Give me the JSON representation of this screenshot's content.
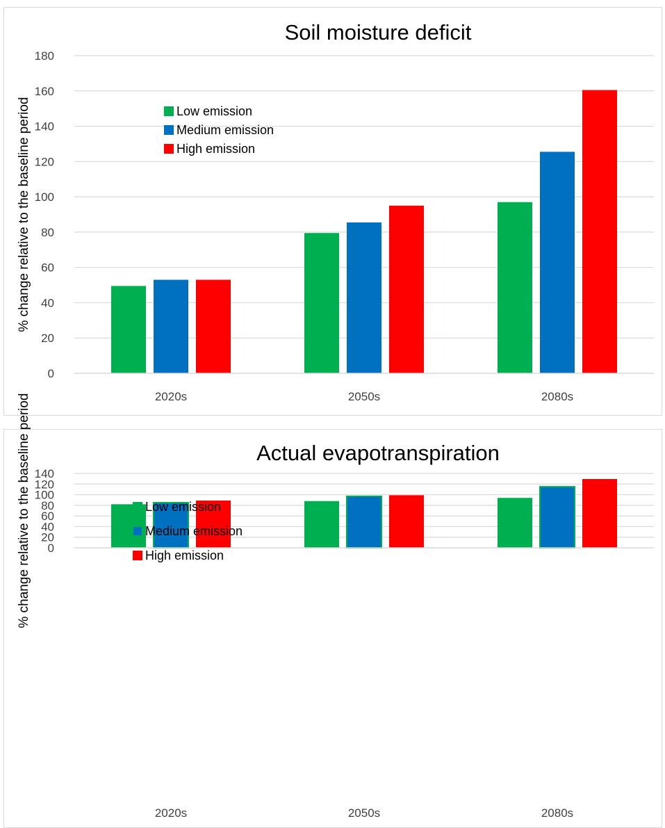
{
  "chart_data": [
    {
      "type": "bar",
      "title": "Soil moisture deficit",
      "ylabel": "% change relative to the baseline period",
      "xlabel": "",
      "categories": [
        "2020s",
        "2050s",
        "2080s"
      ],
      "ylim": [
        0,
        180
      ],
      "yticks": [
        0,
        20,
        40,
        60,
        80,
        100,
        120,
        140,
        160,
        180
      ],
      "grid": true,
      "legend": "top-left",
      "series": [
        {
          "name": "Low emission",
          "color": "#00b050",
          "values": [
            49.5,
            79.5,
            97
          ]
        },
        {
          "name": "Medium emission",
          "color": "#0070c0",
          "values": [
            53,
            85.5,
            125.5
          ]
        },
        {
          "name": "High emission",
          "color": "#ff0000",
          "values": [
            53,
            95,
            160.5
          ]
        }
      ]
    },
    {
      "type": "bar",
      "title": "Actual evapotranspiration",
      "ylabel": "% change relative to the baseline period",
      "xlabel": "",
      "categories": [
        "2020s",
        "2050s",
        "2080s"
      ],
      "ylim": [
        0,
        140
      ],
      "yticks": [
        0,
        20,
        40,
        60,
        80,
        100,
        120,
        140
      ],
      "grid": true,
      "legend": "top-left",
      "series": [
        {
          "name": "Low emission",
          "color": "#00b050",
          "values": [
            82,
            88,
            94
          ]
        },
        {
          "name": "Medium emission",
          "color": "#0070c0",
          "values": [
            85,
            97,
            115
          ]
        },
        {
          "name": "High emission",
          "color": "#ff0000",
          "values": [
            89,
            99,
            129.5
          ]
        }
      ]
    }
  ]
}
